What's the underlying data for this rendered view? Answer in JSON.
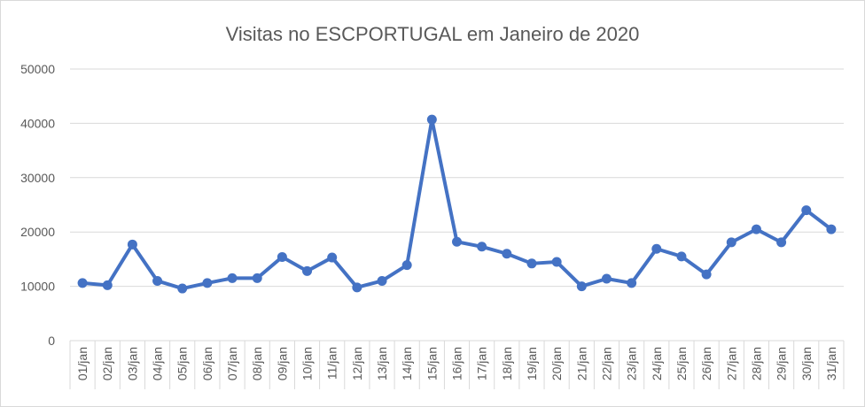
{
  "chart_data": {
    "type": "line",
    "title": "Visitas no ESCPORTUGAL em Janeiro de 2020",
    "xlabel": "",
    "ylabel": "",
    "ylim": [
      0,
      50000
    ],
    "yticks": [
      0,
      10000,
      20000,
      30000,
      40000,
      50000
    ],
    "grid": true,
    "categories": [
      "01/jan",
      "02/jan",
      "03/jan",
      "04/jan",
      "05/jan",
      "06/jan",
      "07/jan",
      "08/jan",
      "09/jan",
      "10/jan",
      "11/jan",
      "12/jan",
      "13/jan",
      "14/jan",
      "15/jan",
      "16/jan",
      "17/jan",
      "18/jan",
      "19/jan",
      "20/jan",
      "21/jan",
      "22/jan",
      "23/jan",
      "24/jan",
      "25/jan",
      "26/jan",
      "27/jan",
      "28/jan",
      "29/jan",
      "30/jan",
      "31/jan"
    ],
    "series": [
      {
        "name": "Visitas",
        "color": "#4472c4",
        "values": [
          10600,
          10200,
          17700,
          11000,
          9600,
          10600,
          11500,
          11500,
          15400,
          12800,
          15300,
          9800,
          11000,
          13900,
          40700,
          18200,
          17300,
          16000,
          14200,
          14500,
          10000,
          11400,
          10600,
          16900,
          15500,
          12200,
          18100,
          20500,
          18100,
          24000,
          20500
        ]
      }
    ]
  }
}
